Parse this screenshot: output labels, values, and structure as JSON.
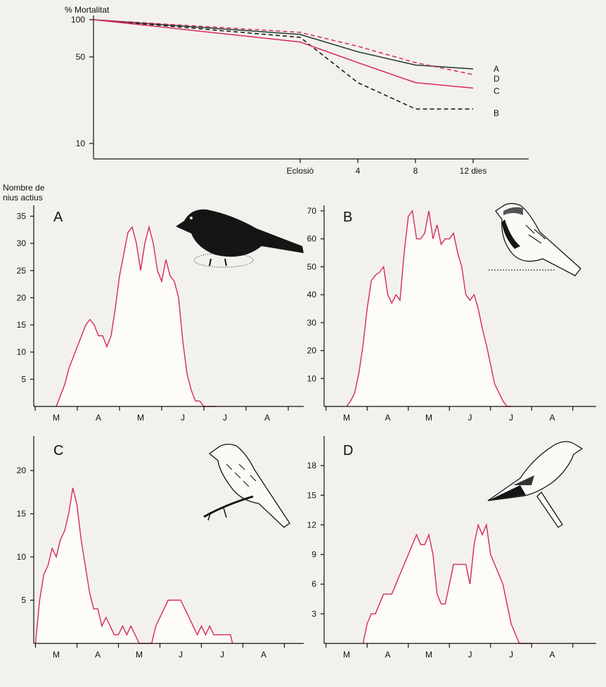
{
  "colors": {
    "red": "#d42a5a",
    "dark": "#1f3a26",
    "black": "#111111",
    "background": "#f3f1ec",
    "fill": "#fdfcf8"
  },
  "chart_data": [
    {
      "type": "line",
      "title": "",
      "ylabel": "% Mortalitat",
      "xlabel": "",
      "x_ticks": [
        "Eclosió",
        "4",
        "8",
        "12 dies"
      ],
      "y_ticks": [
        "100",
        "50",
        "10"
      ],
      "y_scale": "log",
      "ylim": [
        6,
        100
      ],
      "series": [
        {
          "name": "A",
          "color": "#1f3a26",
          "style": "solid",
          "x": [
            -8,
            0,
            4,
            8,
            12
          ],
          "y": [
            100,
            76,
            55,
            43,
            40
          ]
        },
        {
          "name": "B",
          "color": "#111111",
          "style": "dashed",
          "x": [
            -8,
            0,
            4,
            8,
            12
          ],
          "y": [
            100,
            72,
            31,
            19,
            19
          ]
        },
        {
          "name": "C",
          "color": "#d42a5a",
          "style": "solid",
          "x": [
            -8,
            0,
            4,
            8,
            12
          ],
          "y": [
            100,
            66,
            45,
            31,
            28
          ]
        },
        {
          "name": "D",
          "color": "#d42a5a",
          "style": "dashed",
          "x": [
            -8,
            0,
            4,
            8,
            12
          ],
          "y": [
            100,
            79,
            61,
            45,
            36
          ]
        }
      ]
    },
    {
      "type": "area",
      "panel": "A",
      "ylabel": "Nombre de nius actius",
      "y_ticks": [
        "5",
        "10",
        "15",
        "20",
        "25",
        "30",
        "35"
      ],
      "ylim": [
        0,
        37
      ],
      "x_ticks": [
        "M",
        "A",
        "M",
        "J",
        "J",
        "A"
      ],
      "x_month_index": [
        0,
        1,
        2,
        3,
        4,
        5
      ],
      "x": [
        0,
        0.1,
        0.2,
        0.3,
        0.4,
        0.5,
        0.6,
        0.7,
        0.8,
        0.9,
        1.0,
        1.1,
        1.2,
        1.3,
        1.4,
        1.5,
        1.6,
        1.7,
        1.8,
        1.9,
        2.0,
        2.1,
        2.2,
        2.3,
        2.4,
        2.5,
        2.6,
        2.7,
        2.8,
        2.9,
        3.0,
        3.1,
        3.2,
        3.3,
        3.4,
        3.5,
        3.6,
        3.8
      ],
      "y": [
        0,
        2,
        4,
        7,
        9,
        11,
        13,
        15,
        16,
        15,
        13,
        13,
        11,
        13,
        18,
        24,
        28,
        32,
        33,
        30,
        25,
        30,
        33,
        30,
        25,
        23,
        27,
        24,
        23,
        20,
        12,
        6,
        3,
        1,
        1,
        0,
        0,
        0
      ]
    },
    {
      "type": "area",
      "panel": "B",
      "y_ticks": [
        "10",
        "20",
        "30",
        "40",
        "50",
        "60",
        "70"
      ],
      "ylim": [
        0,
        72
      ],
      "x_ticks": [
        "M",
        "A",
        "M",
        "J",
        "J",
        "A"
      ],
      "x_month_index": [
        0,
        1,
        2,
        3,
        4,
        5
      ],
      "x": [
        0,
        0.1,
        0.2,
        0.3,
        0.4,
        0.5,
        0.6,
        0.7,
        0.8,
        0.9,
        1.0,
        1.1,
        1.2,
        1.3,
        1.4,
        1.5,
        1.6,
        1.7,
        1.8,
        1.9,
        2.0,
        2.1,
        2.2,
        2.3,
        2.4,
        2.5,
        2.6,
        2.7,
        2.8,
        2.9,
        3.0,
        3.1,
        3.2,
        3.3,
        3.4,
        3.5,
        3.6,
        3.7,
        3.8,
        3.9,
        4.0
      ],
      "y": [
        0,
        2,
        5,
        12,
        22,
        35,
        45,
        47,
        48,
        50,
        40,
        37,
        40,
        38,
        55,
        68,
        70,
        60,
        60,
        62,
        70,
        60,
        65,
        58,
        60,
        60,
        62,
        55,
        50,
        40,
        38,
        40,
        35,
        28,
        22,
        15,
        8,
        5,
        2,
        0,
        0
      ]
    },
    {
      "type": "area",
      "panel": "C",
      "y_ticks": [
        "5",
        "10",
        "15",
        "20"
      ],
      "ylim": [
        0,
        24
      ],
      "x_ticks": [
        "M",
        "A",
        "M",
        "J",
        "J",
        "A"
      ],
      "x_month_index": [
        0,
        1,
        2,
        3,
        4,
        5
      ],
      "x": [
        -0.5,
        -0.4,
        -0.3,
        -0.2,
        -0.1,
        0.0,
        0.1,
        0.2,
        0.3,
        0.4,
        0.5,
        0.6,
        0.7,
        0.8,
        0.9,
        1.0,
        1.1,
        1.2,
        1.3,
        1.4,
        1.5,
        1.6,
        1.7,
        1.8,
        1.9,
        2.0,
        2.05,
        2.3,
        2.4,
        2.5,
        2.6,
        2.7,
        2.8,
        2.9,
        3.0,
        3.1,
        3.2,
        3.3,
        3.4,
        3.5,
        3.6,
        3.7,
        3.8,
        4.0,
        4.2,
        4.25
      ],
      "y": [
        0,
        5,
        8,
        9,
        11,
        10,
        12,
        13,
        15,
        18,
        16,
        12,
        9,
        6,
        4,
        4,
        2,
        3,
        2,
        1,
        1,
        2,
        1,
        2,
        1,
        0,
        0,
        0,
        2,
        3,
        4,
        5,
        5,
        5,
        5,
        4,
        3,
        2,
        1,
        2,
        1,
        2,
        1,
        1,
        1,
        0
      ]
    },
    {
      "type": "area",
      "panel": "D",
      "y_ticks": [
        "3",
        "6",
        "9",
        "12",
        "15",
        "18"
      ],
      "ylim": [
        0,
        21
      ],
      "x_ticks": [
        "M",
        "A",
        "M",
        "J",
        "J",
        "A"
      ],
      "x_month_index": [
        0,
        1,
        2,
        3,
        4,
        5
      ],
      "x": [
        0.4,
        0.5,
        0.6,
        0.7,
        0.8,
        0.9,
        1.0,
        1.1,
        1.2,
        1.3,
        1.4,
        1.5,
        1.6,
        1.7,
        1.8,
        1.9,
        2.0,
        2.1,
        2.2,
        2.3,
        2.4,
        2.5,
        2.6,
        2.7,
        2.8,
        2.9,
        3.0,
        3.1,
        3.2,
        3.3,
        3.4,
        3.5,
        3.6,
        3.7,
        3.8,
        3.9,
        4.0,
        4.1,
        4.2,
        4.3,
        4.4,
        4.5
      ],
      "y": [
        0,
        2,
        3,
        3,
        4,
        5,
        5,
        5,
        6,
        7,
        8,
        9,
        10,
        11,
        10,
        10,
        11,
        9,
        5,
        4,
        4,
        6,
        8,
        8,
        8,
        8,
        6,
        10,
        12,
        11,
        12,
        9,
        8,
        7,
        6,
        4,
        2,
        1,
        0,
        0,
        0,
        0
      ]
    }
  ]
}
